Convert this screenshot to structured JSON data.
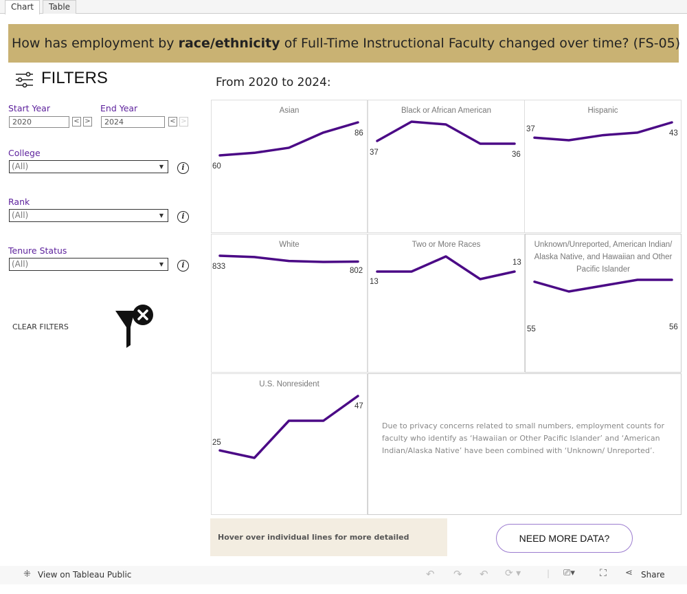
{
  "tabs": [
    {
      "label": "Chart"
    },
    {
      "label": "Table"
    }
  ],
  "header": {
    "title_pre": "How has employment by ",
    "title_bold": "race/ethnicity",
    "title_post": " of Full-Time Instructional Faculty changed over time? (FS-05)"
  },
  "filters": {
    "title": "FILTERS",
    "start_year": {
      "label": "Start Year",
      "value": "2020"
    },
    "end_year": {
      "label": "End Year",
      "value": "2024"
    },
    "college": {
      "label": "College",
      "value": "(All)"
    },
    "rank": {
      "label": "Rank",
      "value": "(All)"
    },
    "tenure": {
      "label": "Tenure Status",
      "value": "(All)"
    },
    "clear_label": "CLEAR FILTERS"
  },
  "subtitle": "From 2020 to 2024:",
  "chart_data": {
    "type": "line",
    "x": [
      2020,
      2021,
      2022,
      2023,
      2024
    ],
    "color": "#4b0a86",
    "series": [
      {
        "name": "Asian",
        "values": [
          60,
          62,
          66,
          78,
          86
        ],
        "start_label": "60",
        "end_label": "86"
      },
      {
        "name": "Black or African American",
        "values": [
          37,
          44,
          43,
          36,
          36
        ],
        "start_label": "37",
        "end_label": "36"
      },
      {
        "name": "Hispanic",
        "values": [
          37,
          36,
          38,
          39,
          43
        ],
        "start_label": "37",
        "end_label": "43"
      },
      {
        "name": "White",
        "values": [
          833,
          826,
          805,
          800,
          802
        ],
        "start_label": "833",
        "end_label": "802"
      },
      {
        "name": "Two or More Races",
        "values": [
          13,
          13,
          17,
          11,
          13
        ],
        "start_label": "13",
        "end_label": "13"
      },
      {
        "name": "Unknown/Unreported, American Indian/ Alaska Native, and Hawaiian and Other Pacific Islander",
        "values": [
          55,
          50,
          53,
          56,
          56
        ],
        "start_label": "55",
        "end_label": "56"
      },
      {
        "name": "U.S. Nonresident",
        "values": [
          25,
          22,
          37,
          37,
          47
        ],
        "start_label": "25",
        "end_label": "47"
      }
    ]
  },
  "note": "Due to privacy concerns related to small numbers, employment counts for faculty who identify as ‘Hawaiian or Other Pacific Islander’ and ‘American Indian/Alaska Native’ have been combined with  ‘Unknown/ Unreported’.",
  "hover_hint": "Hover over individual lines for more detailed information.",
  "need_more_label": "NEED MORE DATA?",
  "footer": {
    "view_label": "View on Tableau Public",
    "share_label": "Share"
  }
}
